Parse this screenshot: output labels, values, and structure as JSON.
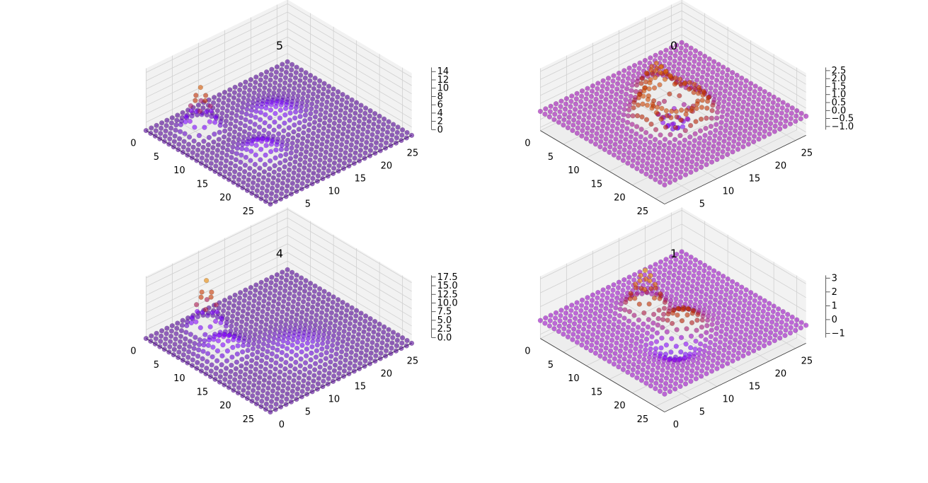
{
  "figure": {
    "background": "#ffffff"
  },
  "chart_data": [
    {
      "type": "scatter",
      "title": "5",
      "grid": true,
      "colormap": "gnuplot",
      "x_ticks": [
        "0",
        "5",
        "10",
        "15",
        "20",
        "25"
      ],
      "y_ticks": [
        "0",
        "5",
        "10",
        "15",
        "20",
        "25"
      ],
      "z_ticks": [
        "0",
        "2",
        "4",
        "6",
        "8",
        "10",
        "12",
        "14"
      ],
      "xlim": [
        0,
        27
      ],
      "ylim": [
        0,
        27
      ],
      "zlim": [
        0,
        15
      ],
      "features": [
        {
          "cx": 16,
          "cy": 8,
          "w": 2.0,
          "amp": 3
        },
        {
          "cx": 10,
          "cy": 16,
          "w": 2.5,
          "amp": 2.5
        },
        {
          "cx": 5,
          "cy": 6,
          "w": 1.3,
          "amp": 10
        }
      ]
    },
    {
      "type": "scatter",
      "title": "0",
      "grid": true,
      "colormap": "gnuplot",
      "x_ticks": [
        "0",
        "5",
        "10",
        "15",
        "20",
        "25"
      ],
      "y_ticks": [
        "0",
        "5",
        "10",
        "15",
        "20",
        "25"
      ],
      "z_ticks": [
        "−1.0",
        "−0.5",
        "0.0",
        "0.5",
        "1.0",
        "1.5",
        "2.0",
        "2.5"
      ],
      "xlim": [
        0,
        27
      ],
      "ylim": [
        0,
        27
      ],
      "zlim": [
        -1.2,
        2.7
      ],
      "features": [
        {
          "cx": 13.5,
          "cy": 13.5,
          "w": 4.0,
          "amp": 1.4,
          "ring": true
        },
        {
          "cx": 14,
          "cy": 14,
          "w": 2.5,
          "amp": -0.9
        },
        {
          "cx": 7,
          "cy": 16,
          "w": 1.5,
          "amp": 1.6
        }
      ]
    },
    {
      "type": "scatter",
      "title": "4",
      "grid": true,
      "colormap": "gnuplot",
      "x_ticks": [
        "0",
        "5",
        "10",
        "15",
        "20",
        "25"
      ],
      "y_ticks": [
        "0",
        "5",
        "10",
        "15",
        "20",
        "25"
      ],
      "z_ticks": [
        "0.0",
        "2.5",
        "5.0",
        "7.5",
        "10.0",
        "12.5",
        "15.0",
        "17.5"
      ],
      "xlim": [
        0,
        27
      ],
      "ylim": [
        0,
        27
      ],
      "zlim": [
        0,
        18
      ],
      "features": [
        {
          "cx": 10,
          "cy": 6,
          "w": 2.0,
          "amp": 4
        },
        {
          "cx": 17,
          "cy": 14,
          "w": 3.0,
          "amp": 2
        },
        {
          "cx": 4,
          "cy": 8,
          "w": 1.2,
          "amp": 14
        }
      ]
    },
    {
      "type": "scatter",
      "title": "1",
      "grid": true,
      "colormap": "gnuplot",
      "x_ticks": [
        "0",
        "5",
        "10",
        "15",
        "20",
        "25"
      ],
      "y_ticks": [
        "0",
        "5",
        "10",
        "15",
        "20",
        "25"
      ],
      "z_ticks": [
        "−1",
        "0",
        "1",
        "2",
        "3"
      ],
      "xlim": [
        0,
        27
      ],
      "ylim": [
        0,
        27
      ],
      "zlim": [
        -1.3,
        3.2
      ],
      "features": [
        {
          "cx": 8,
          "cy": 13,
          "w": 1.5,
          "amp": 2.8
        },
        {
          "cx": 15,
          "cy": 14,
          "w": 2.0,
          "amp": 1.2
        },
        {
          "cx": 18,
          "cy": 10,
          "w": 2.0,
          "amp": -1.0
        }
      ]
    }
  ]
}
